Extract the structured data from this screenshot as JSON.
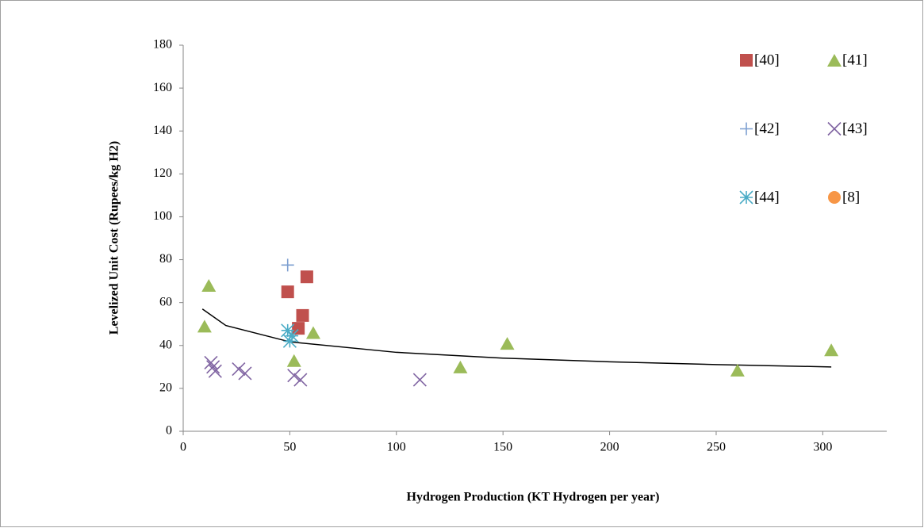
{
  "chart_data": {
    "type": "scatter",
    "x_label": "Hydrogen Production (KT Hydrogen per year)",
    "y_label": "Levelized Unit Cost (Rupees/kg H2)",
    "xlim": [
      0,
      330
    ],
    "xticks": [
      0,
      50,
      100,
      150,
      200,
      250,
      300
    ],
    "ylim": [
      0,
      180
    ],
    "yticks": [
      0,
      20,
      40,
      60,
      80,
      100,
      120,
      140,
      160,
      180
    ],
    "legend": "top-right",
    "series": [
      {
        "name": "[40]",
        "color": "#c0504d",
        "marker": "square",
        "x": [
          49,
          58,
          56,
          54
        ],
        "values": [
          65,
          72,
          54,
          48
        ]
      },
      {
        "name": "[41]",
        "color": "#9bbb59",
        "marker": "triangle",
        "x": [
          12,
          10,
          61,
          52,
          130,
          152,
          260,
          304
        ],
        "values": [
          68,
          49,
          46,
          33,
          30,
          41,
          28.5,
          38
        ]
      },
      {
        "name": "[42]",
        "color": "#7d9fd0",
        "marker": "plus",
        "x": [
          49
        ],
        "values": [
          77.5
        ]
      },
      {
        "name": "[43]",
        "color": "#8064a2",
        "marker": "cross",
        "x": [
          13,
          14,
          15,
          26,
          29,
          52,
          55,
          111
        ],
        "values": [
          32,
          30,
          28,
          29,
          27,
          26,
          24,
          24
        ]
      },
      {
        "name": "[44]",
        "color": "#4bacc6",
        "marker": "asterisk",
        "x": [
          49,
          51,
          50
        ],
        "values": [
          47,
          44.5,
          42
        ]
      },
      {
        "name": "[8]",
        "color": "#f79646",
        "marker": "circle",
        "x": [],
        "values": []
      }
    ],
    "trendline": {
      "color": "#000000",
      "x": [
        9,
        20,
        50,
        100,
        150,
        200,
        250,
        304
      ],
      "values": [
        57,
        49.3,
        41.7,
        36.8,
        34.1,
        32.4,
        31.1,
        30
      ]
    }
  }
}
